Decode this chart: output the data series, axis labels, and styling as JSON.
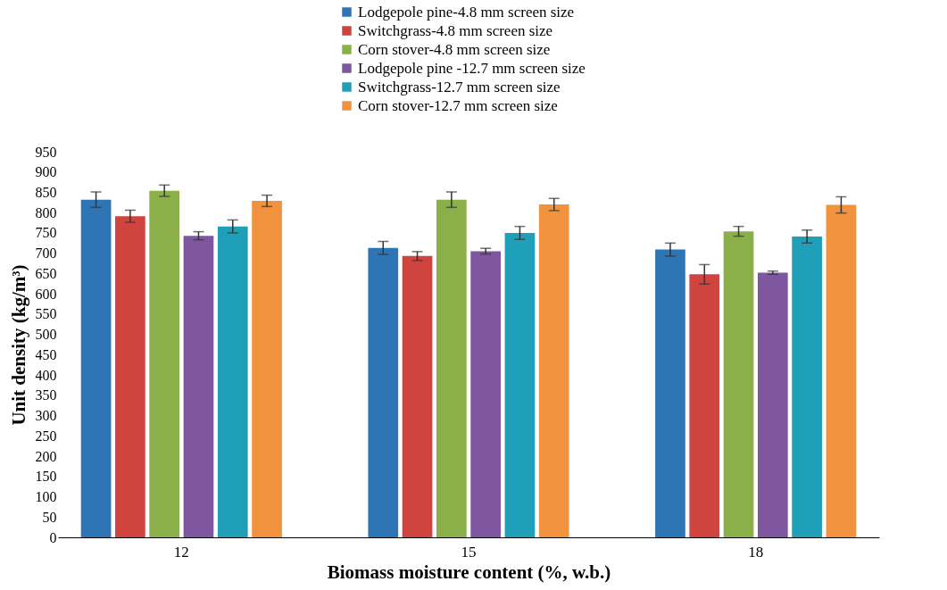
{
  "chart_data": {
    "type": "bar",
    "xlabel": "Biomass moisture content (%, w.b.)",
    "ylabel": "Unit density (kg/m³)",
    "categories": [
      "12",
      "15",
      "18"
    ],
    "series": [
      {
        "name": "Lodgepole pine-4.8 mm screen size",
        "color": "#2e75b6",
        "values": [
          832,
          713,
          709
        ],
        "errors": [
          19,
          16,
          16
        ]
      },
      {
        "name": "Switchgrass-4.8 mm screen size",
        "color": "#d0443f",
        "values": [
          791,
          693,
          648
        ],
        "errors": [
          15,
          11,
          24
        ]
      },
      {
        "name": "Corn stover-4.8 mm screen size",
        "color": "#8bb04a",
        "values": [
          854,
          832,
          754
        ],
        "errors": [
          14,
          19,
          12
        ]
      },
      {
        "name": "Lodgepole pine -12.7 mm screen size",
        "color": "#7e57a0",
        "values": [
          743,
          705,
          652
        ],
        "errors": [
          10,
          7,
          4
        ]
      },
      {
        "name": "Switchgrass-12.7 mm screen size",
        "color": "#1fa0b8",
        "values": [
          766,
          750,
          741
        ],
        "errors": [
          16,
          16,
          16
        ]
      },
      {
        "name": "Corn stover-12.7 mm screen size",
        "color": "#f0923e",
        "values": [
          829,
          820,
          819
        ],
        "errors": [
          14,
          15,
          20
        ]
      }
    ],
    "ylim": [
      0,
      950
    ],
    "yticks": [
      0,
      50,
      100,
      150,
      200,
      250,
      300,
      350,
      400,
      450,
      500,
      550,
      600,
      650,
      700,
      750,
      800,
      850,
      900,
      950
    ],
    "grid": false,
    "legend": "top"
  }
}
